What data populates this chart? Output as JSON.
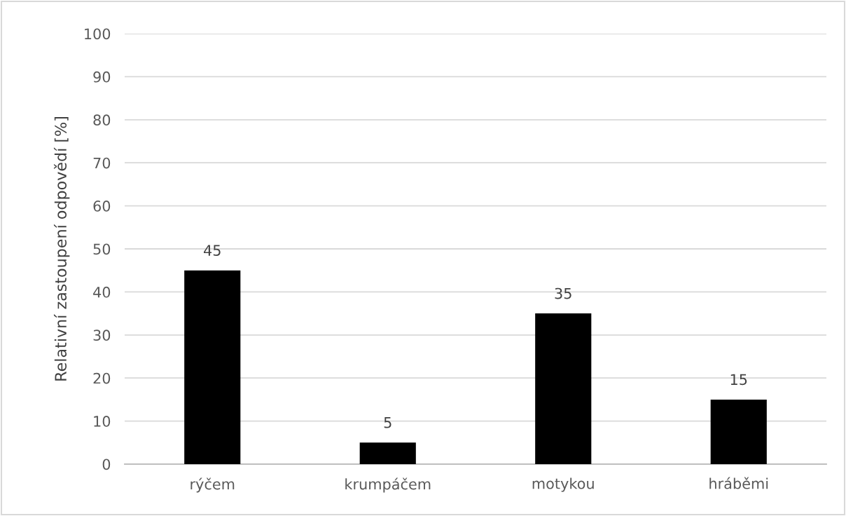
{
  "chart_data": {
    "type": "bar",
    "ylabel": "Relativní zastoupení odpovědí [%]",
    "categories": [
      "rýčem",
      "krumpáčem",
      "motykou",
      "hráběmi"
    ],
    "values": [
      45,
      5,
      35,
      15
    ],
    "color": "#000000",
    "ylim": [
      0,
      100
    ],
    "yticks": [
      0,
      10,
      20,
      30,
      40,
      50,
      60,
      70,
      80,
      90,
      100
    ],
    "grid": "y",
    "data_labels": true,
    "legend": false
  }
}
